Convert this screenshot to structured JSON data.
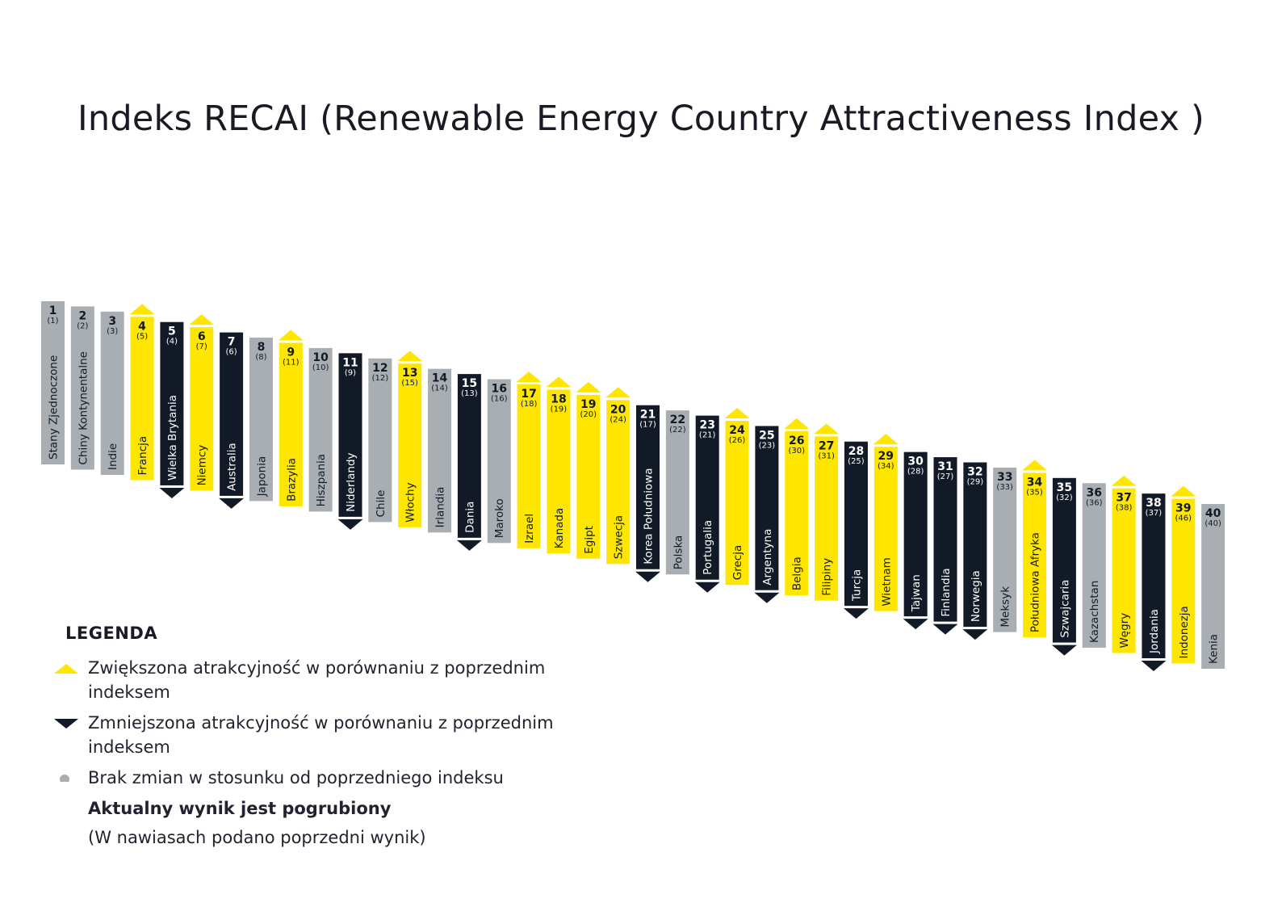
{
  "title": "Indeks RECAI (Renewable Energy Country Attractiveness Index )",
  "colors": {
    "up": "#ffe600",
    "down": "#111a26",
    "same": "#a9aeb2"
  },
  "chart_data": {
    "type": "bar",
    "title": "Indeks RECAI (Renewable Energy Country Attractiveness Index )",
    "categories": [
      "Stany Zjednoczone",
      "Chiny Kontynentalne",
      "Indie",
      "Francja",
      "Wielka Brytania",
      "Niemcy",
      "Australia",
      "Japonia",
      "Brazylia",
      "Hiszpania",
      "Niderlandy",
      "Chile",
      "Włochy",
      "Irlandia",
      "Dania",
      "Maroko",
      "Izrael",
      "Kanada",
      "Egipt",
      "Szwecja",
      "Korea Południowa",
      "Polska",
      "Portugalia",
      "Grecja",
      "Argentyna",
      "Belgia",
      "Filipiny",
      "Turcja",
      "Wietnam",
      "Tajwan",
      "Finlandia",
      "Norwegia",
      "Meksyk",
      "Południowa Afryka",
      "Szwajcaria",
      "Kazachstan",
      "Węgry",
      "Jordania",
      "Indonezja",
      "Kenia"
    ],
    "ranks": [
      "1",
      "2",
      "3",
      "4",
      "5",
      "6",
      "7",
      "8",
      "9",
      "10",
      "11",
      "12",
      "13",
      "14",
      "15",
      "16",
      "17",
      "18",
      "19",
      "20",
      "21",
      "22",
      "23",
      "24",
      "25",
      "26",
      "27",
      "28",
      "29",
      "30",
      "31",
      "32",
      "33",
      "34",
      "35",
      "36",
      "37",
      "38",
      "39",
      "40"
    ],
    "previous": [
      "(1)",
      "(2)",
      "(3)",
      "(5)",
      "(4)",
      "(7)",
      "(6)",
      "(8)",
      "(11)",
      "(10)",
      "(9)",
      "(12)",
      "(15)",
      "(14)",
      "(13)",
      "(16)",
      "(18)",
      "(19)",
      "(20)",
      "(24)",
      "(17)",
      "(22)",
      "(21)",
      "(26)",
      "(23)",
      "(30)",
      "(31)",
      "(25)",
      "(34)",
      "(28)",
      "(27)",
      "(29)",
      "(33)",
      "(35)",
      "(32)",
      "(36)",
      "(38)",
      "(37)",
      "(46)",
      "(40)"
    ],
    "change": [
      "same",
      "same",
      "same",
      "up",
      "down",
      "up",
      "down",
      "same",
      "up",
      "same",
      "down",
      "same",
      "up",
      "same",
      "down",
      "same",
      "up",
      "up",
      "up",
      "up",
      "down",
      "same",
      "down",
      "up",
      "down",
      "up",
      "up",
      "down",
      "up",
      "down",
      "down",
      "down",
      "same",
      "up",
      "down",
      "same",
      "up",
      "down",
      "up",
      "same"
    ]
  },
  "legend": {
    "heading": "LEGENDA",
    "up": "Zwiększona atrakcyjność w porównaniu z poprzednim indeksem",
    "down": "Zmniejszona atrakcyjność w porównaniu z poprzednim indeksem",
    "same": "Brak zmian w stosunku od poprzedniego indeksu",
    "bold_note": "Aktualny wynik jest pogrubiony",
    "paren_note": "(W nawiasach podano poprzedni wynik)"
  }
}
